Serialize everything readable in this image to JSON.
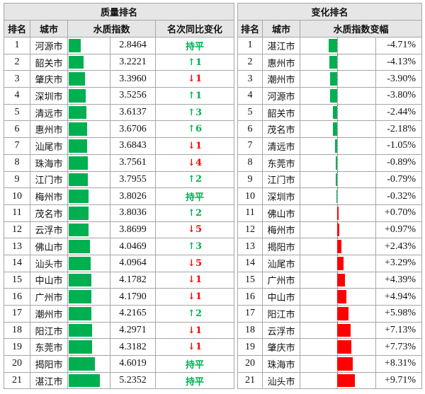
{
  "left": {
    "title": "质量排名",
    "headers": [
      "排名",
      "城市",
      "水质指数",
      "名次同比变化"
    ],
    "rows": [
      {
        "rank": "1",
        "city": "河源市",
        "value": 2.8464,
        "change": "持平",
        "dir": "flat"
      },
      {
        "rank": "2",
        "city": "韶关市",
        "value": 3.2221,
        "change": "↑1",
        "dir": "up"
      },
      {
        "rank": "3",
        "city": "肇庆市",
        "value": 3.396,
        "change": "↓1",
        "dir": "down"
      },
      {
        "rank": "4",
        "city": "深圳市",
        "value": 3.5256,
        "change": "↑1",
        "dir": "up"
      },
      {
        "rank": "5",
        "city": "清远市",
        "value": 3.6137,
        "change": "↑3",
        "dir": "up"
      },
      {
        "rank": "6",
        "city": "惠州市",
        "value": 3.6706,
        "change": "↑6",
        "dir": "up"
      },
      {
        "rank": "7",
        "city": "汕尾市",
        "value": 3.6843,
        "change": "↓1",
        "dir": "down"
      },
      {
        "rank": "8",
        "city": "珠海市",
        "value": 3.7561,
        "change": "↓4",
        "dir": "down"
      },
      {
        "rank": "9",
        "city": "江门市",
        "value": 3.7955,
        "change": "↑2",
        "dir": "up"
      },
      {
        "rank": "10",
        "city": "梅州市",
        "value": 3.8026,
        "change": "持平",
        "dir": "flat"
      },
      {
        "rank": "11",
        "city": "茂名市",
        "value": 3.8036,
        "change": "↑2",
        "dir": "up"
      },
      {
        "rank": "12",
        "city": "云浮市",
        "value": 3.8699,
        "change": "↓5",
        "dir": "down"
      },
      {
        "rank": "13",
        "city": "佛山市",
        "value": 4.0469,
        "change": "↑3",
        "dir": "up"
      },
      {
        "rank": "14",
        "city": "汕头市",
        "value": 4.0964,
        "change": "↓5",
        "dir": "down"
      },
      {
        "rank": "15",
        "city": "中山市",
        "value": 4.1782,
        "change": "↓1",
        "dir": "down"
      },
      {
        "rank": "16",
        "city": "广州市",
        "value": 4.179,
        "change": "↓1",
        "dir": "down"
      },
      {
        "rank": "17",
        "city": "潮州市",
        "value": 4.2165,
        "change": "↑2",
        "dir": "up"
      },
      {
        "rank": "18",
        "city": "阳江市",
        "value": 4.2971,
        "change": "↓1",
        "dir": "down"
      },
      {
        "rank": "19",
        "city": "东莞市",
        "value": 4.3182,
        "change": "↓1",
        "dir": "down"
      },
      {
        "rank": "20",
        "city": "揭阳市",
        "value": 4.6019,
        "change": "持平",
        "dir": "flat"
      },
      {
        "rank": "21",
        "city": "湛江市",
        "value": 5.2352,
        "change": "持平",
        "dir": "flat"
      }
    ]
  },
  "right": {
    "title": "变化排名",
    "headers": [
      "排名",
      "城市",
      "水质指数变幅"
    ],
    "rows": [
      {
        "rank": "1",
        "city": "湛江市",
        "value": -4.71,
        "label": "-4.71%"
      },
      {
        "rank": "2",
        "city": "惠州市",
        "value": -4.13,
        "label": "-4.13%"
      },
      {
        "rank": "3",
        "city": "潮州市",
        "value": -3.9,
        "label": "-3.90%"
      },
      {
        "rank": "4",
        "city": "河源市",
        "value": -3.8,
        "label": "-3.80%"
      },
      {
        "rank": "5",
        "city": "韶关市",
        "value": -2.44,
        "label": "-2.44%"
      },
      {
        "rank": "6",
        "city": "茂名市",
        "value": -2.18,
        "label": "-2.18%"
      },
      {
        "rank": "7",
        "city": "清远市",
        "value": -1.05,
        "label": "-1.05%"
      },
      {
        "rank": "8",
        "city": "东莞市",
        "value": -0.89,
        "label": "-0.89%"
      },
      {
        "rank": "9",
        "city": "江门市",
        "value": -0.79,
        "label": "-0.79%"
      },
      {
        "rank": "10",
        "city": "深圳市",
        "value": -0.32,
        "label": "-0.32%"
      },
      {
        "rank": "11",
        "city": "佛山市",
        "value": 0.7,
        "label": "+0.70%"
      },
      {
        "rank": "12",
        "city": "梅州市",
        "value": 0.97,
        "label": "+0.97%"
      },
      {
        "rank": "13",
        "city": "揭阳市",
        "value": 2.43,
        "label": "+2.43%"
      },
      {
        "rank": "14",
        "city": "汕尾市",
        "value": 3.29,
        "label": "+3.29%"
      },
      {
        "rank": "15",
        "city": "广州市",
        "value": 4.39,
        "label": "+4.39%"
      },
      {
        "rank": "16",
        "city": "中山市",
        "value": 4.94,
        "label": "+4.94%"
      },
      {
        "rank": "17",
        "city": "阳江市",
        "value": 5.98,
        "label": "+5.98%"
      },
      {
        "rank": "18",
        "city": "云浮市",
        "value": 7.13,
        "label": "+7.13%"
      },
      {
        "rank": "19",
        "city": "肇庆市",
        "value": 7.73,
        "label": "+7.73%"
      },
      {
        "rank": "20",
        "city": "珠海市",
        "value": 8.31,
        "label": "+8.31%"
      },
      {
        "rank": "21",
        "city": "汕头市",
        "value": 9.71,
        "label": "+9.71%"
      }
    ]
  },
  "colors": {
    "positive_bar": "#00b050",
    "negative_bar": "#ff0000",
    "header_bg": "#e6e6e6"
  }
}
